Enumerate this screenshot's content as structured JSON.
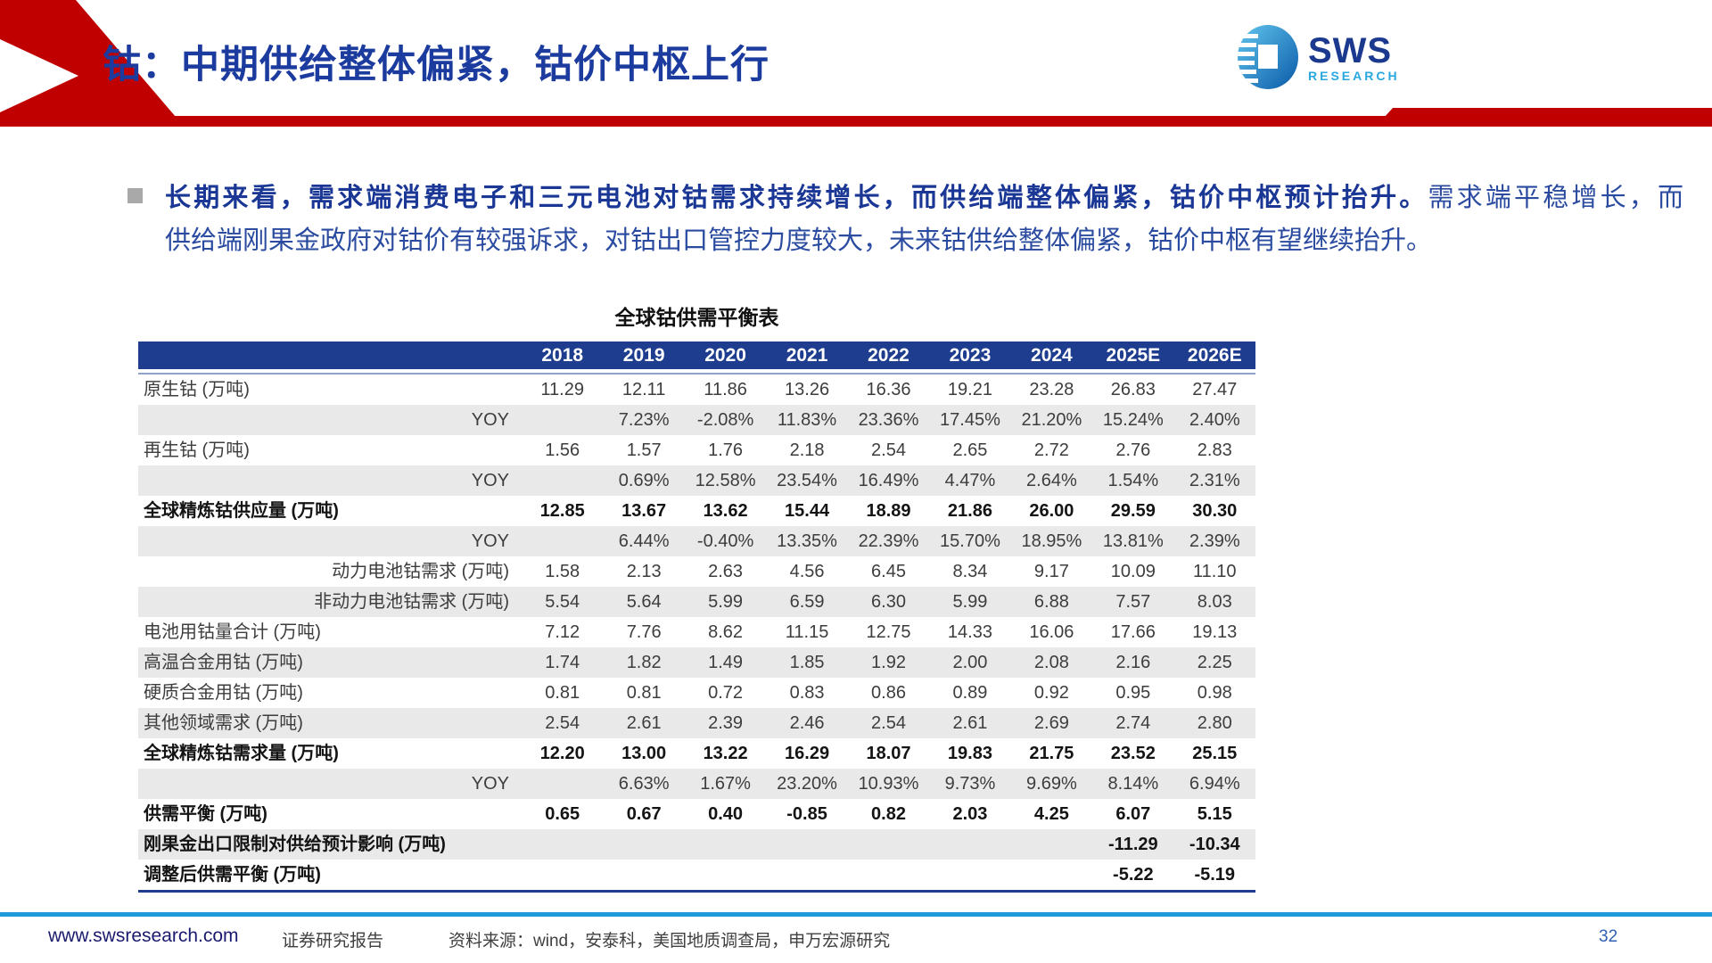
{
  "header": {
    "title": "钴：中期供给整体偏紧，钴价中枢上行",
    "logo": {
      "name": "SWS",
      "sub": "RESEARCH"
    }
  },
  "bullet": {
    "bold_text": "长期来看，需求端消费电子和三元电池对钴需求持续增长，而供给端整体偏紧，钴价中枢预计抬升。",
    "normal_line1": "需求端平稳增长，而",
    "normal_line2": "供给端刚果金政府对钴价有较强诉求，对钴出口管控力度较大，未来钴供给整体偏紧，钴价中枢有望继续抬升。"
  },
  "table": {
    "title": "全球钴供需平衡表",
    "columns": [
      "",
      "2018",
      "2019",
      "2020",
      "2021",
      "2022",
      "2023",
      "2024",
      "2025E",
      "2026E"
    ],
    "rows": [
      {
        "label": "原生钴 (万吨)",
        "align": "left",
        "bold": false,
        "values": [
          "11.29",
          "12.11",
          "11.86",
          "13.26",
          "16.36",
          "19.21",
          "23.28",
          "26.83",
          "27.47"
        ]
      },
      {
        "label": "YOY",
        "align": "right",
        "bold": false,
        "values": [
          "",
          "7.23%",
          "-2.08%",
          "11.83%",
          "23.36%",
          "17.45%",
          "21.20%",
          "15.24%",
          "2.40%"
        ]
      },
      {
        "label": "再生钴 (万吨)",
        "align": "left",
        "bold": false,
        "values": [
          "1.56",
          "1.57",
          "1.76",
          "2.18",
          "2.54",
          "2.65",
          "2.72",
          "2.76",
          "2.83"
        ]
      },
      {
        "label": "YOY",
        "align": "right",
        "bold": false,
        "values": [
          "",
          "0.69%",
          "12.58%",
          "23.54%",
          "16.49%",
          "4.47%",
          "2.64%",
          "1.54%",
          "2.31%"
        ]
      },
      {
        "label": "全球精炼钴供应量 (万吨)",
        "align": "left",
        "bold": true,
        "values": [
          "12.85",
          "13.67",
          "13.62",
          "15.44",
          "18.89",
          "21.86",
          "26.00",
          "29.59",
          "30.30"
        ]
      },
      {
        "label": "YOY",
        "align": "right",
        "bold": false,
        "values": [
          "",
          "6.44%",
          "-0.40%",
          "13.35%",
          "22.39%",
          "15.70%",
          "18.95%",
          "13.81%",
          "2.39%"
        ]
      },
      {
        "label": "动力电池钴需求 (万吨)",
        "align": "right",
        "bold": false,
        "values": [
          "1.58",
          "2.13",
          "2.63",
          "4.56",
          "6.45",
          "8.34",
          "9.17",
          "10.09",
          "11.10"
        ]
      },
      {
        "label": "非动力电池钴需求 (万吨)",
        "align": "right",
        "bold": false,
        "values": [
          "5.54",
          "5.64",
          "5.99",
          "6.59",
          "6.30",
          "5.99",
          "6.88",
          "7.57",
          "8.03"
        ]
      },
      {
        "label": "电池用钴量合计 (万吨)",
        "align": "left",
        "bold": false,
        "values": [
          "7.12",
          "7.76",
          "8.62",
          "11.15",
          "12.75",
          "14.33",
          "16.06",
          "17.66",
          "19.13"
        ]
      },
      {
        "label": "高温合金用钴 (万吨)",
        "align": "left",
        "bold": false,
        "values": [
          "1.74",
          "1.82",
          "1.49",
          "1.85",
          "1.92",
          "2.00",
          "2.08",
          "2.16",
          "2.25"
        ]
      },
      {
        "label": "硬质合金用钴 (万吨)",
        "align": "left",
        "bold": false,
        "values": [
          "0.81",
          "0.81",
          "0.72",
          "0.83",
          "0.86",
          "0.89",
          "0.92",
          "0.95",
          "0.98"
        ]
      },
      {
        "label": "其他领域需求 (万吨)",
        "align": "left",
        "bold": false,
        "values": [
          "2.54",
          "2.61",
          "2.39",
          "2.46",
          "2.54",
          "2.61",
          "2.69",
          "2.74",
          "2.80"
        ]
      },
      {
        "label": "全球精炼钴需求量 (万吨)",
        "align": "left",
        "bold": true,
        "values": [
          "12.20",
          "13.00",
          "13.22",
          "16.29",
          "18.07",
          "19.83",
          "21.75",
          "23.52",
          "25.15"
        ]
      },
      {
        "label": "YOY",
        "align": "right",
        "bold": false,
        "values": [
          "",
          "6.63%",
          "1.67%",
          "23.20%",
          "10.93%",
          "9.73%",
          "9.69%",
          "8.14%",
          "6.94%"
        ]
      },
      {
        "label": "供需平衡 (万吨)",
        "align": "left",
        "bold": true,
        "values": [
          "0.65",
          "0.67",
          "0.40",
          "-0.85",
          "0.82",
          "2.03",
          "4.25",
          "6.07",
          "5.15"
        ]
      },
      {
        "label": "刚果金出口限制对供给预计影响 (万吨)",
        "align": "left",
        "bold": true,
        "values": [
          "",
          "",
          "",
          "",
          "",
          "",
          "",
          "-11.29",
          "-10.34"
        ]
      },
      {
        "label": "调整后供需平衡 (万吨)",
        "align": "left",
        "bold": true,
        "values": [
          "",
          "",
          "",
          "",
          "",
          "",
          "",
          "-5.22",
          "-5.19"
        ]
      }
    ]
  },
  "footer": {
    "site": "www.swsresearch.com",
    "report_type": "证券研究报告",
    "source": "资料来源：wind，安泰科，美国地质调查局，申万宏源研究",
    "page_number": "32"
  },
  "colors": {
    "accent_red": "#c00000",
    "title_blue": "#1c3b9e",
    "table_header_navy": "#1e3d8f",
    "stripe_gray": "#e9e9e9",
    "footer_cyan": "#1f9cd8",
    "logo_blue": "#1b3a8f",
    "logo_cyan": "#29a8e0"
  }
}
